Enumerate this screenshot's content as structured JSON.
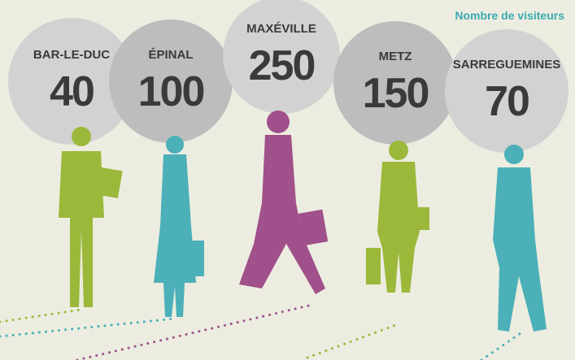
{
  "legend": "Nombre de visiteurs",
  "items": [
    {
      "city": "BAR-LE-DUC",
      "value": 40
    },
    {
      "city": "ÉPINAL",
      "value": 100
    },
    {
      "city": "MAXÉVILLE",
      "value": 250
    },
    {
      "city": "METZ",
      "value": 150
    },
    {
      "city": "SARREGUEMINES",
      "value": 70
    }
  ]
}
